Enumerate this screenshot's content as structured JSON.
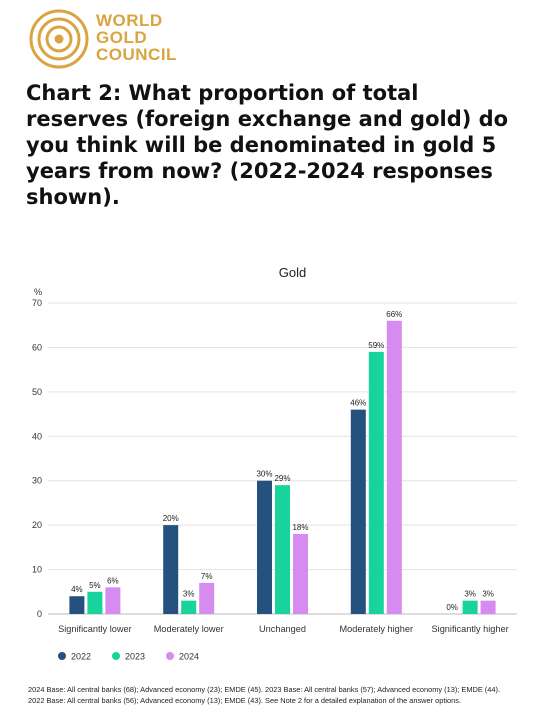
{
  "brand": {
    "line1": "WORLD",
    "line2": "GOLD",
    "line3": "COUNCIL",
    "color": "#D9A441"
  },
  "page_title": "Chart 2: What proportion of total reserves (foreign exchange and gold) do you think will be denominated in gold 5 years from now? (2022-2024 responses shown).",
  "chart_data": {
    "type": "bar",
    "title": "Gold",
    "ylabel": "%",
    "ylim": [
      0,
      70
    ],
    "yticks": [
      0,
      10,
      20,
      30,
      40,
      50,
      60,
      70
    ],
    "grid": true,
    "legend_position": "bottom-left",
    "categories": [
      "Significantly lower",
      "Moderately lower",
      "Unchanged",
      "Moderately higher",
      "Significantly higher"
    ],
    "series": [
      {
        "name": "2022",
        "color": "#24517E",
        "values": [
          4,
          20,
          30,
          46,
          0
        ],
        "labels": [
          "4%",
          "20%",
          "30%",
          "46%",
          "0%"
        ]
      },
      {
        "name": "2023",
        "color": "#18D39B",
        "values": [
          5,
          3,
          29,
          59,
          3
        ],
        "labels": [
          "5%",
          "3%",
          "29%",
          "59%",
          "3%"
        ]
      },
      {
        "name": "2024",
        "color": "#D58BF0",
        "values": [
          6,
          7,
          18,
          66,
          3
        ],
        "labels": [
          "6%",
          "7%",
          "18%",
          "66%",
          "3%"
        ]
      }
    ]
  },
  "notes": {
    "line1": "2024 Base: All central banks (68); Advanced economy (23); EMDE (45). 2023 Base: All central banks (57); Advanced economy (13); EMDE (44).",
    "line2": "2022 Base: All central banks (56); Advanced economy (13); EMDE (43). See Note 2 for a detailed explanation of the answer options."
  }
}
